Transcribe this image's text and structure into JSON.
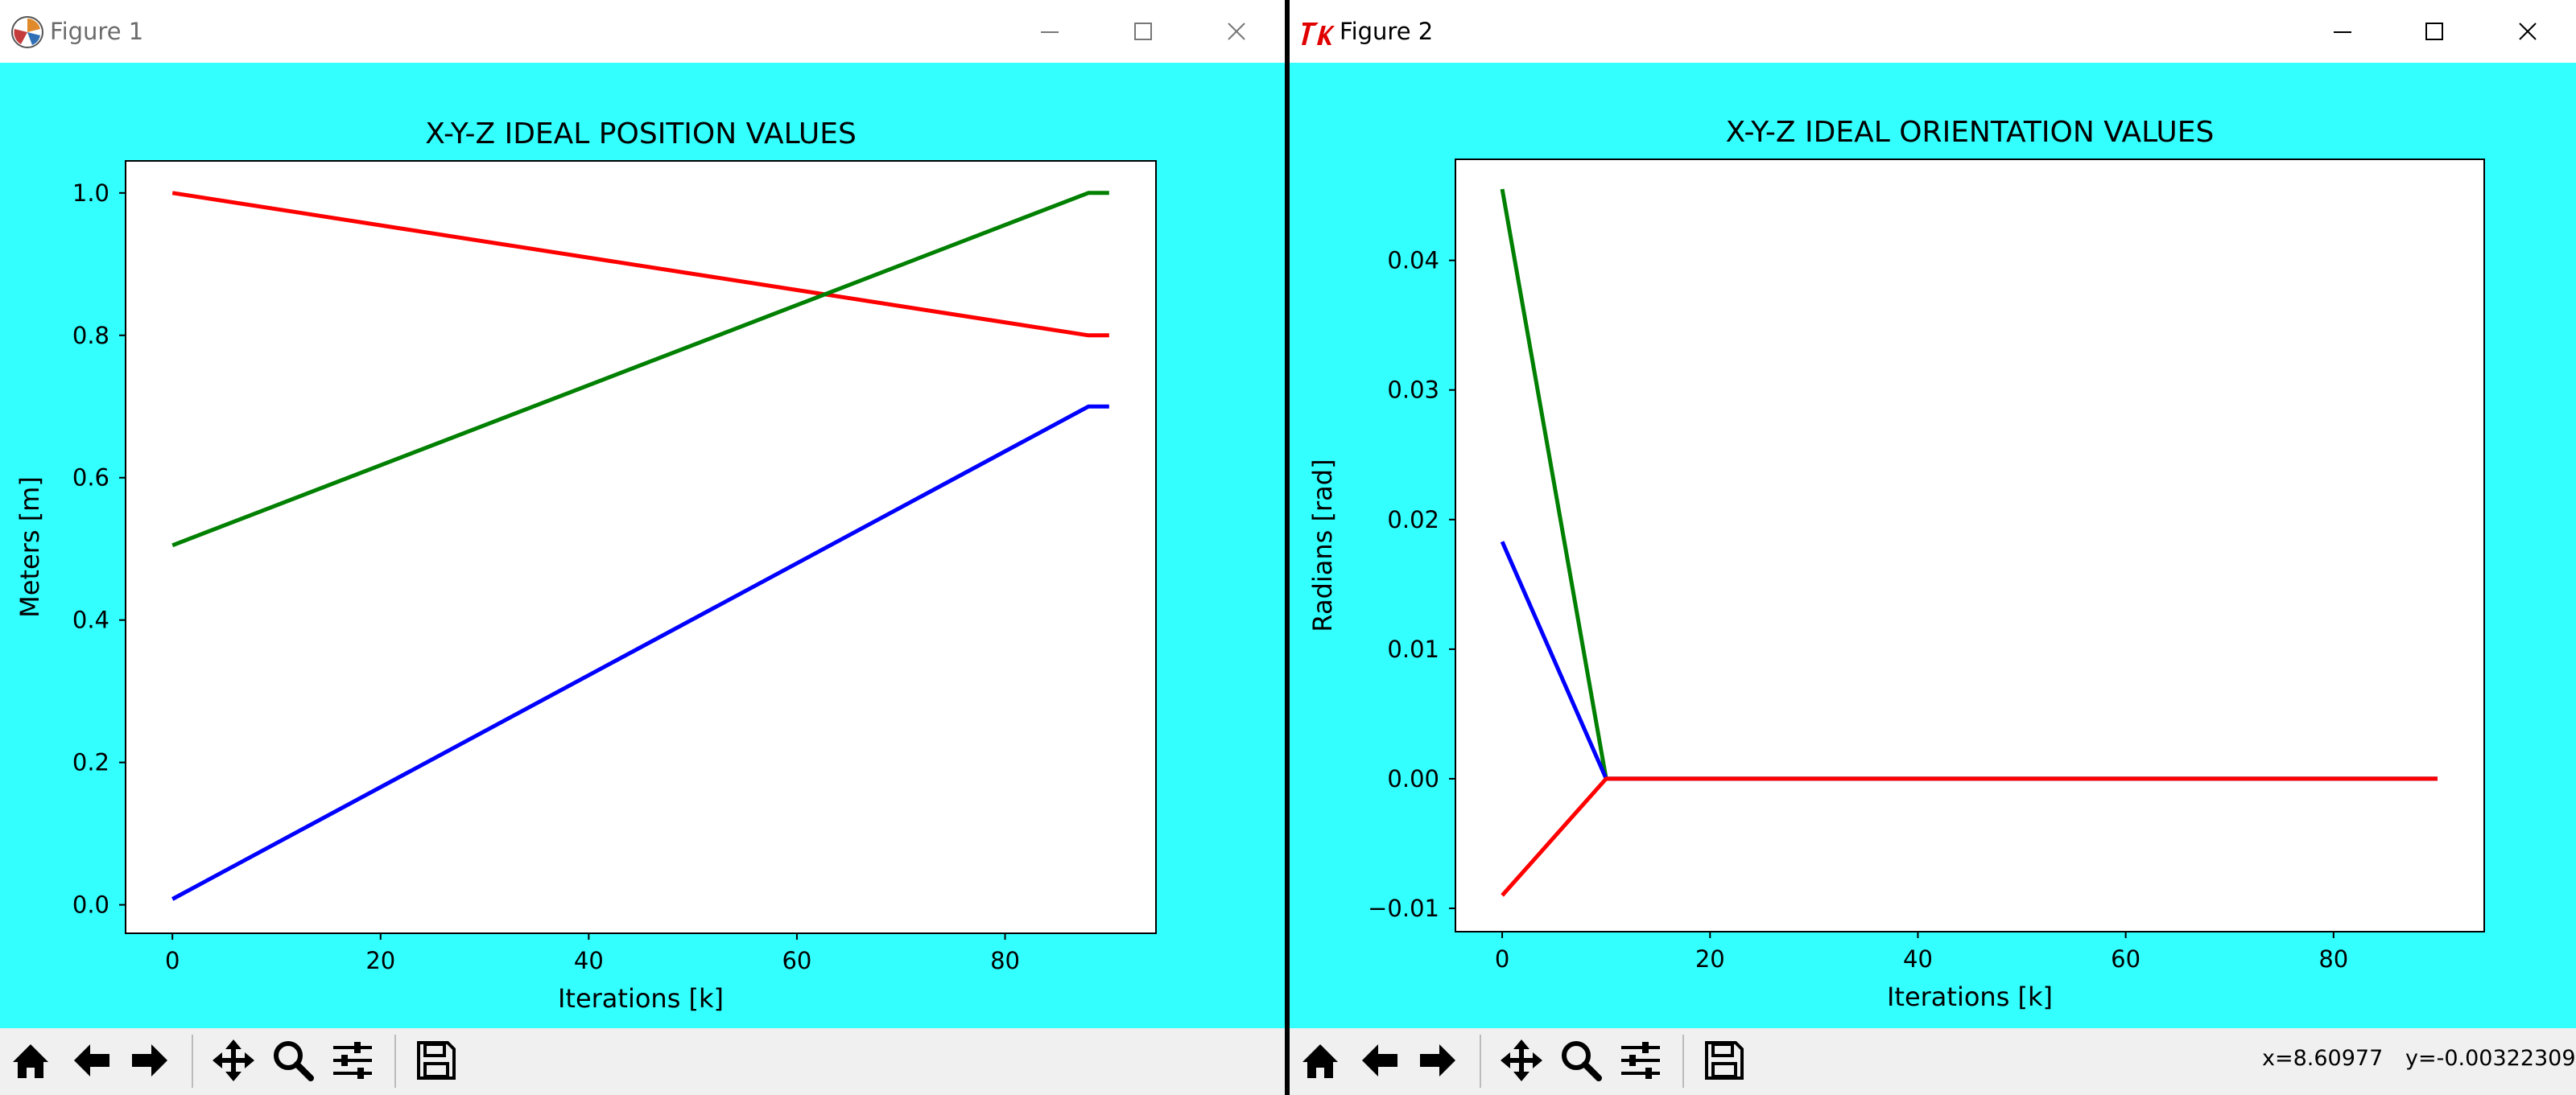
{
  "windows": [
    {
      "title": "Figure 1",
      "icon": "matplotlib-icon",
      "controls": [
        "minimize-icon",
        "maximize-icon",
        "close-icon"
      ]
    },
    {
      "title": "Figure 2",
      "icon": "tk-feather-icon",
      "controls": [
        "minimize-icon",
        "maximize-icon",
        "close-icon"
      ],
      "status": {
        "x_readout": "x=8.60977",
        "y_readout": "y=-0.00322309"
      }
    }
  ],
  "toolbar_buttons": [
    "home-icon",
    "back-icon",
    "forward-icon",
    "pan-icon",
    "zoom-icon",
    "configure-subplots-icon",
    "save-icon"
  ],
  "chart_data": [
    {
      "type": "line",
      "title": "X-Y-Z IDEAL POSITION VALUES",
      "xlabel": "Iterations [k]",
      "ylabel": "Meters [m]",
      "xlim": [
        -4.5,
        94.5
      ],
      "ylim": [
        -0.04,
        1.045
      ],
      "xticks": [
        0,
        20,
        40,
        60,
        80
      ],
      "yticks": [
        0.0,
        0.2,
        0.4,
        0.6,
        0.8,
        1.0
      ],
      "ytick_labels": [
        "0.0",
        "0.2",
        "0.4",
        "0.6",
        "0.8",
        "1.0"
      ],
      "grid": false,
      "series": [
        {
          "color": "#ff0000",
          "x": [
            0,
            88,
            90
          ],
          "y": [
            1.0,
            0.8,
            0.8
          ]
        },
        {
          "color": "#008000",
          "x": [
            0,
            88,
            90
          ],
          "y": [
            0.505,
            1.0,
            1.0
          ]
        },
        {
          "color": "#0000ff",
          "x": [
            0,
            88,
            90
          ],
          "y": [
            0.008,
            0.7,
            0.7
          ]
        }
      ]
    },
    {
      "type": "line",
      "title": "X-Y-Z IDEAL ORIENTATION VALUES",
      "xlabel": "Iterations [k]",
      "ylabel": "Radians [rad]",
      "xlim": [
        -4.5,
        94.5
      ],
      "ylim": [
        -0.0118,
        0.0478
      ],
      "xticks": [
        0,
        20,
        40,
        60,
        80
      ],
      "yticks": [
        -0.01,
        0.0,
        0.01,
        0.02,
        0.03,
        0.04
      ],
      "ytick_labels": [
        "−0.01",
        "0.00",
        "0.01",
        "0.02",
        "0.03",
        "0.04"
      ],
      "grid": false,
      "series": [
        {
          "color": "#008000",
          "x": [
            0,
            10,
            90
          ],
          "y": [
            0.0455,
            0.0,
            0.0
          ]
        },
        {
          "color": "#0000ff",
          "x": [
            0,
            10,
            90
          ],
          "y": [
            0.0183,
            0.0,
            0.0
          ]
        },
        {
          "color": "#ff0000",
          "x": [
            0,
            10,
            90
          ],
          "y": [
            -0.009,
            0.0,
            0.0
          ]
        }
      ]
    }
  ]
}
